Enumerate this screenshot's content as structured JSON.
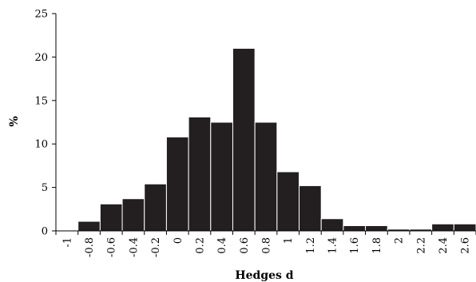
{
  "chart_data": {
    "type": "bar",
    "title": "",
    "xlabel": "Hedges d",
    "ylabel": "%",
    "ylim": [
      0,
      25
    ],
    "yticks": [
      "0",
      "5",
      "10",
      "15",
      "20",
      "25"
    ],
    "categories": [
      "-1",
      "-0.8",
      "-0.6",
      "-0.4",
      "-0.2",
      "0",
      "0.2",
      "0.4",
      "0.6",
      "0.8",
      "1",
      "1.2",
      "1.4",
      "1.6",
      "1.8",
      "2",
      "2.2",
      "2.4",
      "2.6"
    ],
    "values": [
      0,
      1.1,
      3.1,
      3.7,
      5.4,
      10.8,
      13.1,
      12.5,
      21.0,
      12.5,
      6.8,
      5.2,
      1.4,
      0.6,
      0.6,
      0.2,
      0.2,
      0.8,
      0.8
    ],
    "grid": false,
    "legend": "none",
    "bar_color": "#231f20"
  }
}
